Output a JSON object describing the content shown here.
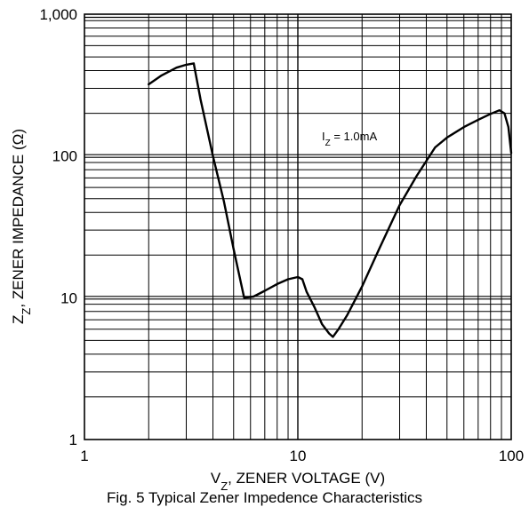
{
  "chart_data": {
    "type": "line",
    "title": "",
    "caption": "Fig. 5  Typical Zener Impedence Characteristics",
    "xlabel": {
      "main": "V",
      "sub": "Z",
      "rest": ", ZENER VOLTAGE (V)"
    },
    "ylabel": {
      "main": "Z",
      "sub": "Z",
      "rest": ", ZENER IMPEDANCE (Ω)"
    },
    "x_scale": "log",
    "y_scale": "log",
    "xlim": [
      1,
      100
    ],
    "ylim": [
      1,
      1000
    ],
    "x_ticks": [
      {
        "value": 1,
        "label": "1"
      },
      {
        "value": 10,
        "label": "10"
      },
      {
        "value": 100,
        "label": "100"
      }
    ],
    "y_ticks": [
      {
        "value": 1,
        "label": "1"
      },
      {
        "value": 10,
        "label": "10"
      },
      {
        "value": 100,
        "label": "100"
      },
      {
        "value": 1000,
        "label": "1,000"
      }
    ],
    "grid": true,
    "annotation": {
      "main": "I",
      "sub": "Z",
      "rest": " = 1.0mA"
    },
    "series": [
      {
        "x": [
          2.0,
          2.3,
          2.7,
          3.0,
          3.25,
          3.5,
          4.0,
          4.5,
          5.0,
          5.6,
          6.2,
          7.0,
          8.0,
          9.0,
          10.0,
          10.5,
          11.0,
          12.0,
          13.0,
          14.0,
          14.6,
          15.5,
          17.0,
          20.0,
          24.0,
          30.0,
          36.0,
          44.0,
          50.0,
          60.0,
          70.0,
          80.0,
          88.0,
          93.0,
          97.0,
          100.0
        ],
        "y": [
          320,
          370,
          420,
          440,
          450,
          250,
          100,
          48,
          22,
          10,
          10.2,
          11.2,
          12.5,
          13.5,
          14,
          13.5,
          11,
          8.5,
          6.5,
          5.6,
          5.3,
          6.0,
          7.5,
          12,
          22,
          45,
          72,
          115,
          135,
          160,
          180,
          198,
          210,
          200,
          160,
          105
        ]
      }
    ]
  }
}
